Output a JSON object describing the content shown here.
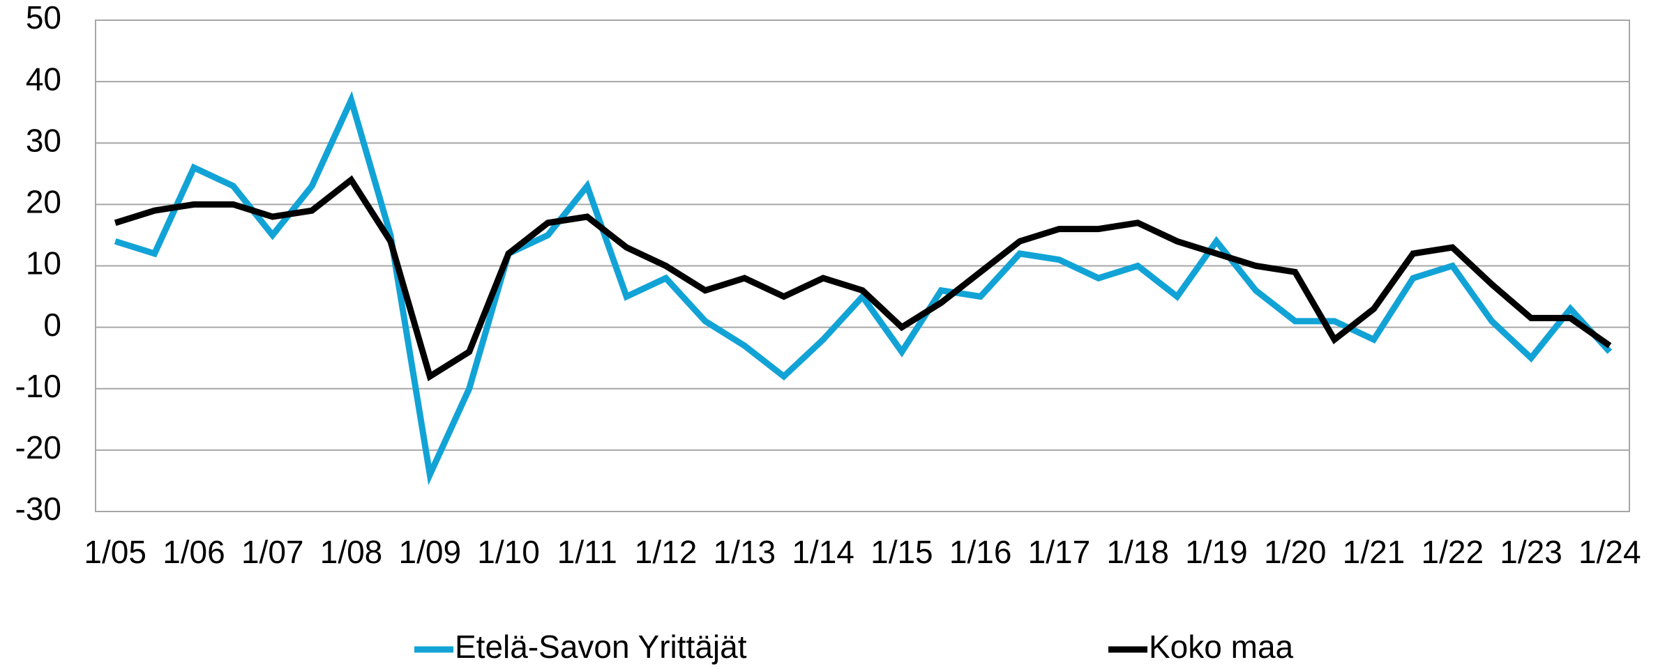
{
  "chart_data": {
    "type": "line",
    "categories": [
      "1/05",
      null,
      "1/06",
      null,
      "1/07",
      null,
      "1/08",
      null,
      "1/09",
      null,
      "1/10",
      null,
      "1/11",
      null,
      "1/12",
      null,
      "1/13",
      null,
      "1/14",
      null,
      "1/15",
      null,
      "1/16",
      null,
      "1/17",
      null,
      "1/18",
      null,
      "1/19",
      null,
      "1/20",
      null,
      "1/21",
      null,
      "1/22",
      null,
      "1/23",
      null,
      "1/24"
    ],
    "series": [
      {
        "name": "Etelä-Savon Yrittäjät",
        "color": "#12a3d6",
        "values": [
          14,
          12,
          26,
          23,
          15,
          23,
          37,
          15,
          -24,
          -10,
          12,
          15,
          23,
          5,
          8,
          1,
          -3,
          -8,
          -2,
          5,
          -4,
          6,
          5,
          12,
          11,
          8,
          10,
          5,
          14,
          6,
          1,
          1,
          -2,
          8,
          10,
          1,
          -5,
          3,
          -4
        ]
      },
      {
        "name": "Koko maa",
        "color": "#000000",
        "values": [
          17,
          19,
          20,
          20,
          18,
          19,
          24,
          14,
          -8,
          -4,
          12,
          17,
          18,
          13,
          10,
          6,
          8,
          5,
          8,
          6,
          0,
          4,
          9,
          14,
          16,
          16,
          17,
          14,
          12,
          10,
          9,
          -2,
          3,
          12,
          13,
          7,
          1.5,
          1.5,
          -3
        ]
      }
    ],
    "ylim": [
      -30,
      50
    ],
    "yticks": [
      -30,
      -20,
      -10,
      0,
      10,
      20,
      30,
      40,
      50
    ],
    "grid": true,
    "legend": "bottom"
  }
}
